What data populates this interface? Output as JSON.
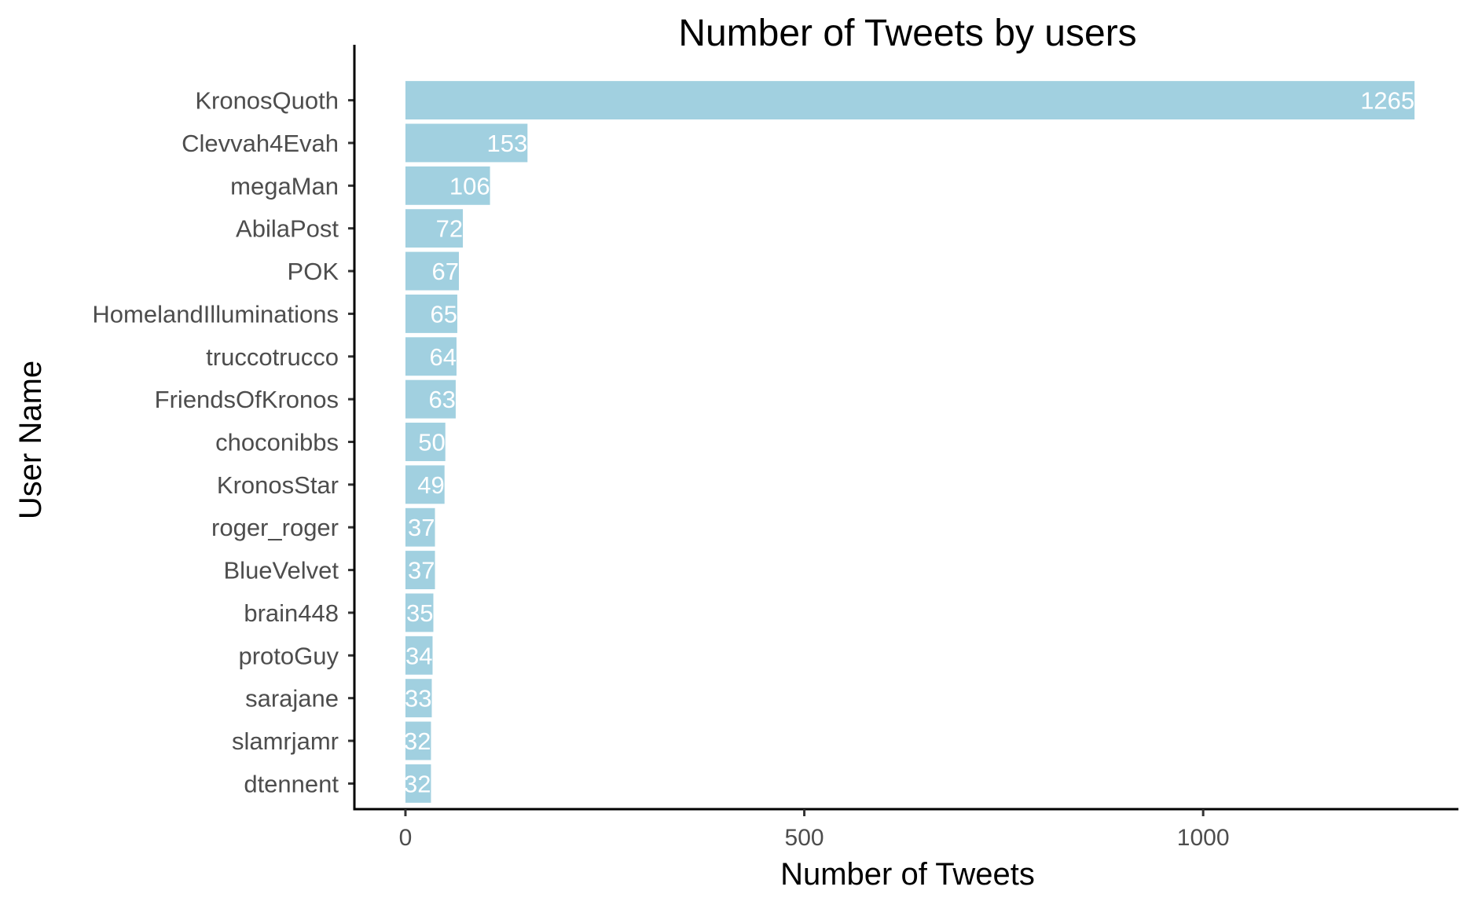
{
  "chart_data": {
    "type": "bar",
    "orientation": "horizontal",
    "title": "Number of Tweets by users",
    "xlabel": "Number of Tweets",
    "ylabel": "User Name",
    "xlim": [
      -64,
      1320
    ],
    "xticks": [
      0,
      500,
      1000
    ],
    "categories": [
      "KronosQuoth",
      "Clevvah4Evah",
      "megaMan",
      "AbilaPost",
      "POK",
      "HomelandIlluminations",
      "truccotrucco",
      "FriendsOfKronos",
      "choconibbs",
      "KronosStar",
      "roger_roger",
      "BlueVelvet",
      "brain448",
      "protoGuy",
      "sarajane",
      "slamrjamr",
      "dtennent"
    ],
    "values": [
      1265,
      153,
      106,
      72,
      67,
      65,
      64,
      63,
      50,
      49,
      37,
      37,
      35,
      34,
      33,
      32,
      32
    ],
    "bar_color": "#a1d0e0",
    "data_label_color": "#ffffff",
    "grid": false,
    "legend": "none"
  }
}
